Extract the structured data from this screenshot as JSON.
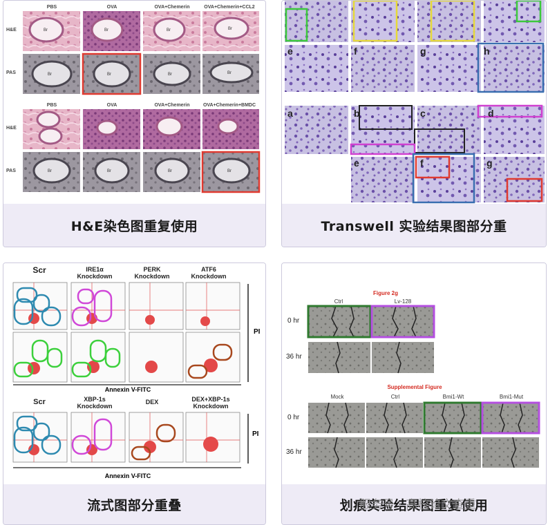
{
  "cards": [
    {
      "caption": "H&E染色图重复使用"
    },
    {
      "caption": "Transwell 实验结果图部分重"
    },
    {
      "caption": "流式图部分重叠"
    },
    {
      "caption": "划痕实验结果图重复使用"
    }
  ],
  "he_figure": {
    "top_columns": [
      "PBS",
      "OVA",
      "OVA+Chemerin",
      "OVA+Chemerin+CCL2"
    ],
    "bottom_columns": [
      "PBS",
      "OVA",
      "OVA+Chemerin",
      "OVA+Chemerin+BMDC"
    ],
    "row_labels": [
      "H&E",
      "PAS"
    ],
    "tissue_label": "Br"
  },
  "transwell_figure": {
    "top_panels": [
      "e",
      "f",
      "g",
      "h"
    ],
    "mid_panels": [
      "a",
      "b",
      "c",
      "d"
    ],
    "bottom_panels": [
      "e",
      "f",
      "g"
    ]
  },
  "flow_figure": {
    "top_columns": [
      "Scr",
      "IRE1α\nKnockdown",
      "PERK\nKnockdown",
      "ATF6\nKnockdown"
    ],
    "bottom_columns": [
      "Scr",
      "XBP-1s\nKnockdown",
      "DEX",
      "DEX+XBP-1s\nKnockdown"
    ],
    "axis_label": "Annexin V-FITC",
    "side_label": "PI"
  },
  "scratch_figure": {
    "title_top": "Figure 2g",
    "top_columns": [
      "Ctrl",
      "Lv-128"
    ],
    "title_bottom": "Supplemental Figure",
    "bottom_columns": [
      "Mock",
      "Ctrl",
      "Bmi1-Wt",
      "Bmi1-Mut"
    ],
    "row_labels": [
      "0 hr",
      "36 hr"
    ]
  },
  "watermark": "服务号 · 高校论文查重",
  "colors": {
    "caption_bg": "#eeebf6",
    "card_border": "#ccc9dd",
    "red": "#e03a30",
    "green": "#3cc93c",
    "purple": "#b44fe0"
  }
}
